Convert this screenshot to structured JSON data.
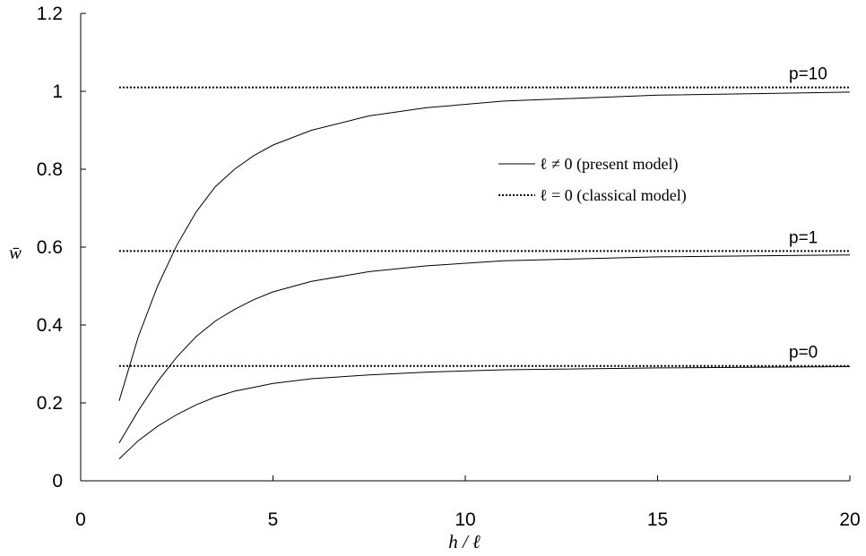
{
  "chart_data": {
    "type": "line",
    "xlabel": "h / ℓ",
    "ylabel": "w̄",
    "xlim": [
      0,
      20
    ],
    "ylim": [
      0,
      1.2
    ],
    "xticks": [
      "0",
      "5",
      "10",
      "15",
      "20"
    ],
    "yticks": [
      "0",
      "0.2",
      "0.4",
      "0.6",
      "0.8",
      "1",
      "1.2"
    ],
    "grid": false,
    "legend": {
      "placement": "center-right",
      "entries": [
        {
          "style": "solid",
          "label": "ℓ ≠ 0 (present model)"
        },
        {
          "style": "dotted",
          "label": "ℓ = 0 (classical model)"
        }
      ]
    },
    "series": [
      {
        "name": "p=10",
        "style": "solid",
        "x": [
          1,
          1.5,
          2,
          2.5,
          3,
          3.5,
          4,
          4.5,
          5,
          6,
          7.5,
          9,
          11,
          15,
          20
        ],
        "y": [
          0.205,
          0.37,
          0.5,
          0.605,
          0.69,
          0.755,
          0.8,
          0.835,
          0.862,
          0.9,
          0.937,
          0.958,
          0.975,
          0.99,
          0.998
        ]
      },
      {
        "name": "p=1",
        "style": "solid",
        "x": [
          1,
          1.5,
          2,
          2.5,
          3,
          3.5,
          4,
          4.5,
          5,
          6,
          7.5,
          9,
          11,
          15,
          20
        ],
        "y": [
          0.097,
          0.18,
          0.255,
          0.318,
          0.37,
          0.41,
          0.44,
          0.465,
          0.485,
          0.512,
          0.537,
          0.552,
          0.565,
          0.575,
          0.58
        ]
      },
      {
        "name": "p=0",
        "style": "solid",
        "x": [
          1,
          1.5,
          2,
          2.5,
          3,
          3.5,
          4,
          4.5,
          5,
          6,
          7.5,
          9,
          11,
          15,
          20
        ],
        "y": [
          0.056,
          0.103,
          0.14,
          0.17,
          0.195,
          0.215,
          0.23,
          0.24,
          0.25,
          0.262,
          0.272,
          0.279,
          0.285,
          0.29,
          0.293
        ]
      },
      {
        "name": "p=10",
        "style": "dotted",
        "x": [
          1,
          20
        ],
        "y": [
          1.01,
          1.01
        ]
      },
      {
        "name": "p=1",
        "style": "dotted",
        "x": [
          1,
          20
        ],
        "y": [
          0.59,
          0.59
        ]
      },
      {
        "name": "p=0",
        "style": "dotted",
        "x": [
          1,
          20
        ],
        "y": [
          0.295,
          0.295
        ]
      }
    ],
    "annotations": [
      "p=10",
      "p=1",
      "p=0"
    ]
  }
}
